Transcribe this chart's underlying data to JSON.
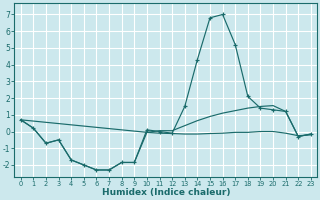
{
  "xlabel": "Humidex (Indice chaleur)",
  "background_color": "#cce8ed",
  "grid_color": "#ffffff",
  "line_color": "#1a6b6b",
  "xlim": [
    -0.5,
    23.5
  ],
  "ylim": [
    -2.7,
    7.7
  ],
  "yticks": [
    -2,
    -1,
    0,
    1,
    2,
    3,
    4,
    5,
    6,
    7
  ],
  "xticks": [
    0,
    1,
    2,
    3,
    4,
    5,
    6,
    7,
    8,
    9,
    10,
    11,
    12,
    13,
    14,
    15,
    16,
    17,
    18,
    19,
    20,
    21,
    22,
    23
  ],
  "line1_x": [
    0,
    1,
    2,
    3,
    4,
    5,
    6,
    7,
    8,
    9,
    10,
    11,
    12,
    13,
    14,
    15,
    16,
    17,
    18,
    19,
    20,
    21,
    22,
    23
  ],
  "line1_y": [
    0.7,
    0.2,
    -0.7,
    -0.5,
    -1.7,
    -2.0,
    -2.3,
    -2.3,
    -1.85,
    -1.85,
    0.1,
    0.0,
    -0.1,
    1.5,
    4.3,
    6.8,
    7.0,
    5.2,
    2.1,
    1.4,
    1.3,
    1.2,
    -0.3,
    -0.15
  ],
  "line2_x": [
    0,
    1,
    2,
    3,
    4,
    5,
    6,
    7,
    8,
    9,
    10,
    11,
    12,
    13,
    14,
    15,
    16,
    17,
    18,
    19,
    20,
    21,
    22,
    23
  ],
  "line2_y": [
    0.7,
    0.2,
    -0.7,
    -0.5,
    -1.7,
    -2.0,
    -2.3,
    -2.3,
    -1.85,
    -1.85,
    -0.05,
    0.05,
    0.05,
    0.35,
    0.65,
    0.9,
    1.1,
    1.25,
    1.4,
    1.5,
    1.55,
    1.2,
    -0.3,
    -0.15
  ],
  "line3_x": [
    0,
    10,
    11,
    12,
    13,
    14,
    15,
    16,
    17,
    18,
    19,
    20,
    21,
    22,
    23
  ],
  "line3_y": [
    0.7,
    -0.05,
    -0.1,
    -0.12,
    -0.15,
    -0.15,
    -0.12,
    -0.1,
    -0.05,
    -0.05,
    0.0,
    0.0,
    -0.1,
    -0.25,
    -0.2
  ]
}
